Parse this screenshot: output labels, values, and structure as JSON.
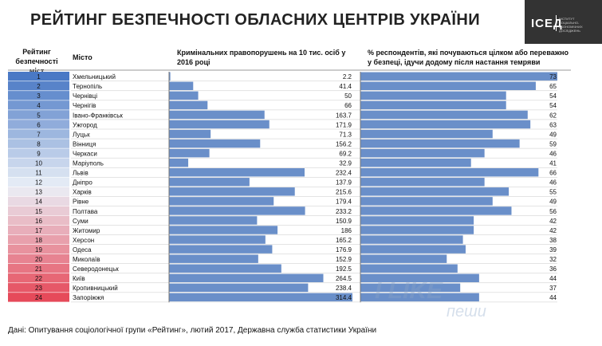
{
  "title": "РЕЙТИНГ БЕЗПЕЧНОСТІ ОБЛАСНИХ ЦЕНТРІВ УКРАЇНИ",
  "logo": {
    "name": "ІСЕД",
    "subtitle": [
      "ІНСТИТУТ",
      "СОЦІАЛЬНО-ЕКОНОМІЧНИХ",
      "ДОСЛІДЖЕНЬ"
    ]
  },
  "headers": {
    "rank": "Рейтинг безпечності міст",
    "city": "Місто",
    "crime": "Кримінальних правопорушень на 10 тис. осіб у 2016 році",
    "safe": "% респондентів, які почуваються цілком або переважно у безпеці, ідучи додому після настання темряви"
  },
  "footnote": "Дані: Опитування соціологічної групи «Рейтинг», лютий 2017, Державна служба статистики України",
  "watermark": [
    "I LIKE",
    "пеши"
  ],
  "colors": {
    "bar": "#6a8fc9",
    "rank_top": "#4a79c5",
    "rank_bottom": "#e64a5a",
    "grid": "#c9c9c9"
  },
  "chart_data": {
    "type": "table",
    "columns": [
      "Рейтинг безпечності міст",
      "Місто",
      "Кримінальних правопорушень на 10 тис. осіб у 2016 році",
      "% респондентів, які почуваються цілком або переважно у безпеці, ідучи додому після настання темряви"
    ],
    "rows": [
      {
        "rank": 1,
        "city": "Хмельницький",
        "crime": 2.2,
        "safe": 73
      },
      {
        "rank": 2,
        "city": "Тернопіль",
        "crime": 41.4,
        "safe": 65
      },
      {
        "rank": 3,
        "city": "Чернівці",
        "crime": 50,
        "safe": 54
      },
      {
        "rank": 4,
        "city": "Чернігів",
        "crime": 66,
        "safe": 54
      },
      {
        "rank": 5,
        "city": "Івано-Франківськ",
        "crime": 163.7,
        "safe": 62
      },
      {
        "rank": 6,
        "city": "Ужгород",
        "crime": 171.9,
        "safe": 63
      },
      {
        "rank": 7,
        "city": "Луцьк",
        "crime": 71.3,
        "safe": 49
      },
      {
        "rank": 8,
        "city": "Вінниця",
        "crime": 156.2,
        "safe": 59
      },
      {
        "rank": 9,
        "city": "Черкаси",
        "crime": 69.2,
        "safe": 46
      },
      {
        "rank": 10,
        "city": "Маріуполь",
        "crime": 32.9,
        "safe": 41
      },
      {
        "rank": 11,
        "city": "Львів",
        "crime": 232.4,
        "safe": 66
      },
      {
        "rank": 12,
        "city": "Дніпро",
        "crime": 137.9,
        "safe": 46
      },
      {
        "rank": 13,
        "city": "Харків",
        "crime": 215.6,
        "safe": 55
      },
      {
        "rank": 14,
        "city": "Рівне",
        "crime": 179.4,
        "safe": 49
      },
      {
        "rank": 15,
        "city": "Полтава",
        "crime": 233.2,
        "safe": 56
      },
      {
        "rank": 16,
        "city": "Суми",
        "crime": 150.9,
        "safe": 42
      },
      {
        "rank": 17,
        "city": "Житомир",
        "crime": 186,
        "safe": 42
      },
      {
        "rank": 18,
        "city": "Херсон",
        "crime": 165.2,
        "safe": 38
      },
      {
        "rank": 19,
        "city": "Одеса",
        "crime": 176.9,
        "safe": 39
      },
      {
        "rank": 20,
        "city": "Миколаїв",
        "crime": 152.9,
        "safe": 32
      },
      {
        "rank": 21,
        "city": "Северодонецьк",
        "crime": 192.5,
        "safe": 36
      },
      {
        "rank": 22,
        "city": "Київ",
        "crime": 264.5,
        "safe": 44
      },
      {
        "rank": 23,
        "city": "Кропивницький",
        "crime": 238.4,
        "safe": 37
      },
      {
        "rank": 24,
        "city": "Запоріжжя",
        "crime": 314.4,
        "safe": 44
      }
    ],
    "crime_range": [
      0,
      314.4
    ],
    "safe_range": [
      0,
      73
    ]
  }
}
